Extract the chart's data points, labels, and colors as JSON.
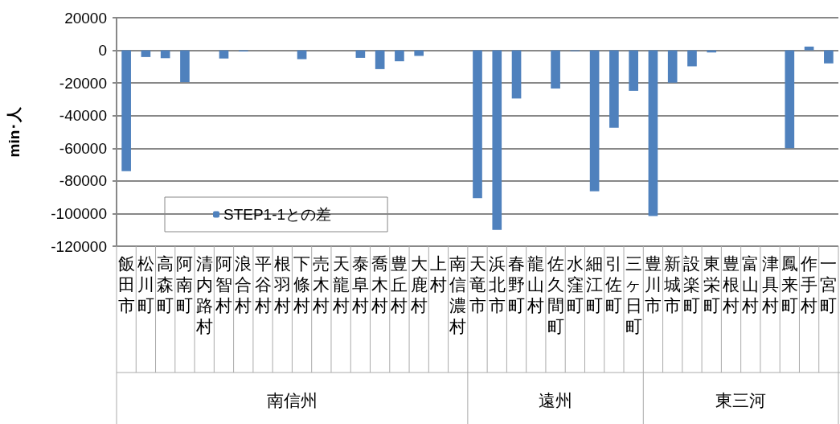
{
  "chart_data": {
    "type": "bar",
    "ylabel": "min･人",
    "categories": [
      "飯田市",
      "松川町",
      "高森町",
      "阿南町",
      "清内路村",
      "阿智村",
      "浪合村",
      "平谷村",
      "根羽村",
      "下條村",
      "売木村",
      "天龍村",
      "泰阜村",
      "喬木村",
      "豊丘村",
      "大鹿村",
      "上村",
      "南信濃村",
      "天竜市",
      "浜北市",
      "春野町",
      "龍山村",
      "佐久間町",
      "水窪町",
      "細江町",
      "引佐町",
      "三ヶ日町",
      "豊川市",
      "新城市",
      "設楽町",
      "東栄町",
      "豊根村",
      "富山村",
      "津具村",
      "鳳来町",
      "作手村",
      "一宮町"
    ],
    "series": [
      {
        "name": "STEP1-1との差",
        "color": "#4f81bd",
        "values": [
          -74000,
          -4100,
          -4800,
          -19500,
          0,
          -5000,
          -700,
          0,
          0,
          -5400,
          0,
          0,
          -4600,
          -11500,
          -6700,
          -3400,
          0,
          0,
          -90500,
          -110000,
          -29500,
          0,
          -23400,
          -500,
          -86400,
          -47400,
          -24800,
          -101500,
          -19800,
          -9800,
          -1300,
          0,
          0,
          0,
          -60000,
          2300,
          -8000
        ]
      }
    ],
    "ylim": [
      -120000,
      20000
    ],
    "yticks": [
      -120000,
      -100000,
      -80000,
      -60000,
      -40000,
      -20000,
      0,
      20000
    ],
    "grid": "y",
    "legend": "bottom left",
    "annotations": [
      "南信州",
      "遠州",
      "東三河"
    ]
  }
}
